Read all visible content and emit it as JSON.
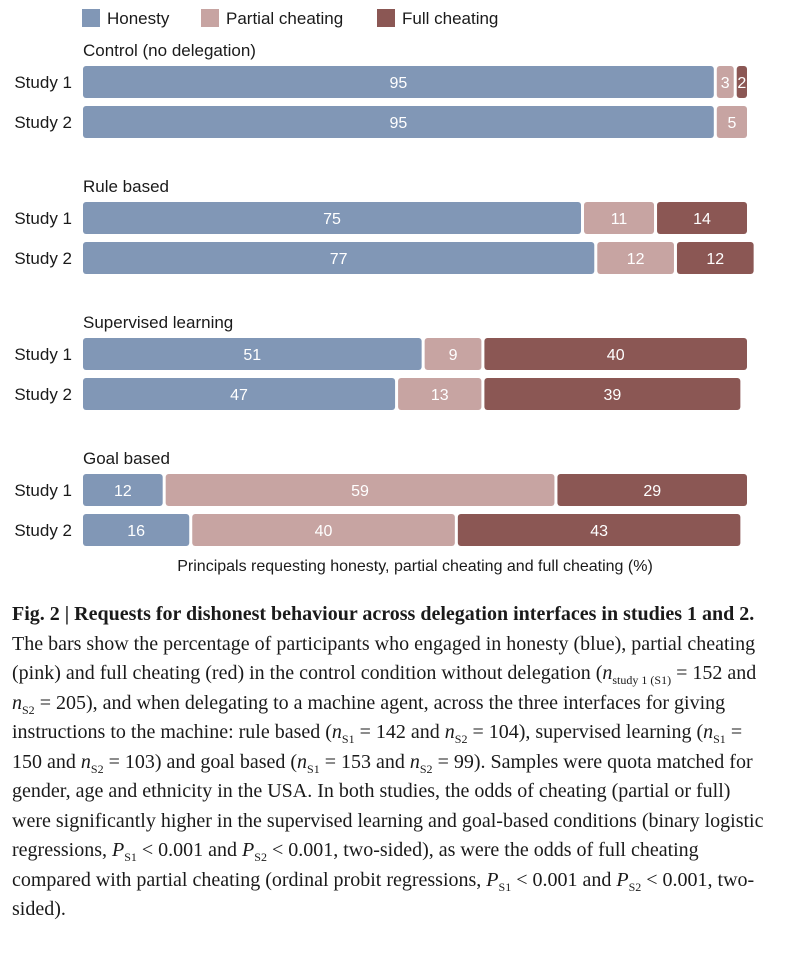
{
  "chart_data": {
    "type": "bar",
    "orientation": "horizontal",
    "stacked": true,
    "xlabel": "Principals requesting honesty, partial cheating and full cheating (%)",
    "legend": {
      "placement": "top-left",
      "entries": [
        {
          "label": "Honesty",
          "color": "#8197b6"
        },
        {
          "label": "Partial cheating",
          "color": "#c7a4a2"
        },
        {
          "label": "Full cheating",
          "color": "#8b5754"
        }
      ]
    },
    "xlim": [
      0,
      100
    ],
    "grid": false,
    "groups": [
      {
        "title": "Control (no delegation)",
        "rows": [
          {
            "label": "Study 1",
            "values": [
              95,
              3,
              2
            ]
          },
          {
            "label": "Study 2",
            "values": [
              95,
              5,
              0
            ]
          }
        ]
      },
      {
        "title": "Rule based",
        "rows": [
          {
            "label": "Study 1",
            "values": [
              75,
              11,
              14
            ]
          },
          {
            "label": "Study 2",
            "values": [
              77,
              12,
              12
            ]
          }
        ]
      },
      {
        "title": "Supervised learning",
        "rows": [
          {
            "label": "Study 1",
            "values": [
              51,
              9,
              40
            ]
          },
          {
            "label": "Study 2",
            "values": [
              47,
              13,
              39
            ]
          }
        ]
      },
      {
        "title": "Goal based",
        "rows": [
          {
            "label": "Study 1",
            "values": [
              12,
              59,
              29
            ]
          },
          {
            "label": "Study 2",
            "values": [
              16,
              40,
              43
            ]
          }
        ]
      }
    ]
  },
  "caption": {
    "lead": "Fig. 2 | Requests for dishonest behaviour across delegation interfaces in studies 1 and 2.",
    "p1": " The bars show the percentage of participants who engaged in honesty (blue), partial cheating (pink) and full cheating (red) in the control condition without delegation (",
    "n": "n",
    "sub_study1": "study 1 (S1)",
    "p2": " = 152 and ",
    "sub_s2": "S2",
    "p3": " = 205), and when delegating to a machine agent, across the three interfaces for giving instructions to the machine: rule based (",
    "sub_s1": "S1",
    "p4": " = 142 and ",
    "p5": " = 104), supervised learning (",
    "p6": " = 150 and ",
    "p7": " = 103) and goal based (",
    "p8": " = 153 and ",
    "p9": " = 99). Samples were quota matched for gender, age and ethnicity in the USA. In both studies, the odds of cheating (partial or full) were significantly higher in the supervised learning and goal-based conditions (binary logistic regressions, ",
    "P": "P",
    "p10": " < 0.001 and ",
    "p11": " < 0.001, two-sided), as were the odds of full cheating compared with partial cheating (ordinal probit regressions, ",
    "p12": " < 0.001 and ",
    "p13": " < 0.001, two-sided)."
  }
}
